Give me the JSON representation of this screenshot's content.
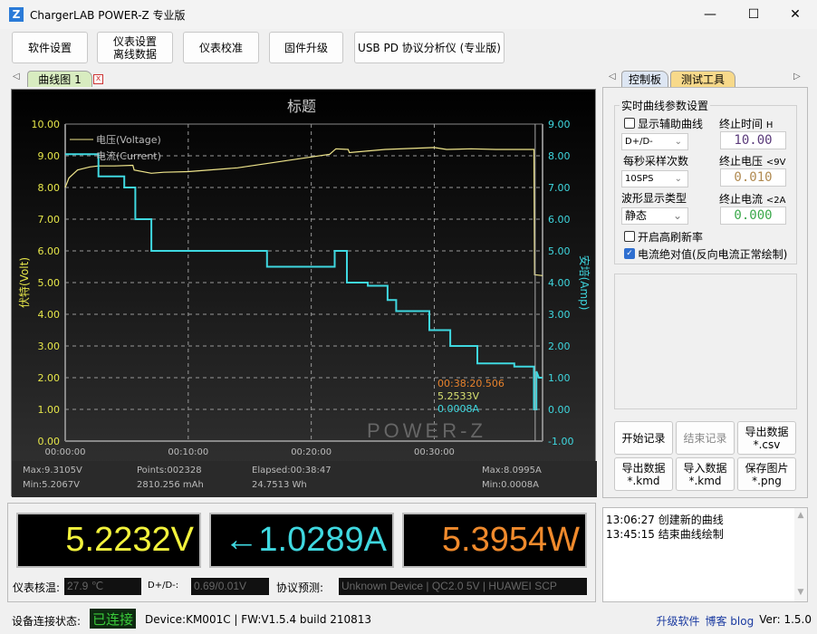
{
  "window": {
    "title": "ChargerLAB POWER-Z 专业版",
    "icon": "Z",
    "minimize": "—",
    "maximize": "☐",
    "close": "✕"
  },
  "toolbar": [
    "软件设置",
    "仪表设置\n离线数据",
    "仪表校准",
    "固件升级",
    "USB PD 协议分析仪 (专业版)"
  ],
  "left_tabs": {
    "nav_left": "◁",
    "active": "曲线图 1",
    "close": "x"
  },
  "right_tabs": {
    "nav_left": "◁",
    "nav_right": "▷",
    "tabs": [
      "控制板",
      "测试工具"
    ]
  },
  "chart": {
    "title": "标题",
    "ylabel_left": "伏特(Volt)",
    "ylabel_right": "安培(Amp)",
    "watermark": "POWER-Z",
    "cursor": {
      "time": "00:38:20.506",
      "voltage": "5.2533V",
      "current": "0.0008A"
    },
    "stats": {
      "vmax": "Max:9.3105V",
      "vmin": "Min:5.2067V",
      "points": "Points:002328",
      "mah": "2810.256 mAh",
      "elapsed": "Elapsed:00:38:47",
      "wh": "24.7513 Wh",
      "amax": "Max:8.0995A",
      "amin": "Min:0.0008A"
    }
  },
  "chart_data": {
    "type": "line",
    "title": "标题",
    "xlabel": "",
    "ylabel": "伏特(Volt)",
    "y2label": "安培(Amp)",
    "xlim_min": [
      0,
      38.8
    ],
    "x_ticks": [
      "00:00:00",
      "00:10:00",
      "00:20:00",
      "00:30:00"
    ],
    "x_tick_values_min": [
      0,
      10,
      20,
      30
    ],
    "ylim": [
      0,
      10
    ],
    "y2lim": [
      -1,
      9
    ],
    "y_ticks": [
      "0.00",
      "1.00",
      "2.00",
      "3.00",
      "4.00",
      "5.00",
      "6.00",
      "7.00",
      "8.00",
      "9.00",
      "10.00"
    ],
    "y2_ticks": [
      "-1.00",
      "0.00",
      "1.00",
      "2.00",
      "3.00",
      "4.00",
      "5.00",
      "6.00",
      "7.00",
      "8.00",
      "9.00"
    ],
    "grid": true,
    "legend": "top-left",
    "colors": {
      "voltage": "#f0e68c",
      "current": "#3fd8e0",
      "axis_left": "#e6e64a",
      "axis_right": "#3fd8e0"
    },
    "series": [
      {
        "name": "电压(Voltage)",
        "axis": "left",
        "x_min": [
          0,
          0.3,
          1,
          2,
          2.7,
          4,
          5.5,
          5.6,
          7,
          8,
          10,
          14,
          18,
          21.5,
          22,
          23,
          23.1,
          26,
          30,
          31,
          33,
          35,
          38.1,
          38.15,
          38.8
        ],
        "values": [
          8.0,
          8.3,
          8.55,
          8.65,
          8.68,
          8.68,
          8.7,
          8.55,
          8.45,
          8.48,
          8.5,
          8.62,
          8.85,
          9.05,
          9.22,
          9.2,
          9.1,
          9.2,
          9.26,
          9.2,
          9.22,
          9.2,
          9.2,
          5.25,
          5.22
        ]
      },
      {
        "name": "电流(Current)",
        "axis": "right",
        "x_min": [
          0,
          2.7,
          2.7,
          4.8,
          4.8,
          5.7,
          5.7,
          7.0,
          7.0,
          16.4,
          16.4,
          21.9,
          21.9,
          22.9,
          22.9,
          24.6,
          24.6,
          26.2,
          26.2,
          26.9,
          26.9,
          29.6,
          29.6,
          31.3,
          31.3,
          33.5,
          33.5,
          36.5,
          36.5,
          38.1,
          38.1,
          38.3,
          38.3,
          38.5,
          38.8
        ],
        "values": [
          8.05,
          8.05,
          7.35,
          7.35,
          7.0,
          7.0,
          6.0,
          6.0,
          5.0,
          5.0,
          4.5,
          4.5,
          5.0,
          5.0,
          4.0,
          4.0,
          3.9,
          3.9,
          3.45,
          3.45,
          3.1,
          3.1,
          2.5,
          2.5,
          2.0,
          2.0,
          1.45,
          1.45,
          1.35,
          1.35,
          0.0,
          0.0,
          1.2,
          1.0,
          1.0
        ]
      }
    ]
  },
  "meters": {
    "voltage": "5.2232V",
    "current": "←1.0289A",
    "power": "5.3954W",
    "colors": {
      "voltage": "#f2f23c",
      "current": "#3fd8e0",
      "power": "#f08a2c"
    }
  },
  "info": {
    "temp_label": "仪表核温:",
    "temp": "27.9 ℃",
    "dpdm_label": "D+/D-:",
    "dpdm": "0.69/0.01V",
    "proto_label": "协议预测:",
    "proto": "Unknown Device | QC2.0 5V | HUAWEI SCP"
  },
  "settings": {
    "group_title": "实时曲线参数设置",
    "aux_curve": "显示辅助曲线",
    "aux_checked": false,
    "aux_select": "D+/D-",
    "end_time_label": "终止时间",
    "end_time_unit": "H",
    "end_time": "10.00",
    "sps_label": "每秒采样次数",
    "sps_select": "10SPS",
    "end_volt_label": "终止电压",
    "end_volt_hint": "<9V",
    "end_volt": "0.010",
    "wave_label": "波形显示类型",
    "wave_select": "静态",
    "end_curr_label": "终止电流",
    "end_curr_hint": "<2A",
    "end_curr": "0.000",
    "high_refresh": "开启高刷新率",
    "high_refresh_checked": false,
    "abs_current": "电流绝对值(反向电流正常绘制)",
    "abs_current_checked": true
  },
  "actions": [
    "开始记录",
    "结束记录",
    "导出数据\n*.csv",
    "导出数据\n*.kmd",
    "导入数据\n*.kmd",
    "保存图片\n*.png"
  ],
  "log": [
    "13:06:27 创建新的曲线",
    "13:45:15 结束曲线绘制"
  ],
  "status": {
    "label": "设备连接状态:",
    "state": "已连接",
    "device": "Device:KM001C | FW:V1.5.4 build 210813",
    "upgrade": "升级软件",
    "blog": "博客 blog",
    "version": "Ver: 1.5.0"
  }
}
